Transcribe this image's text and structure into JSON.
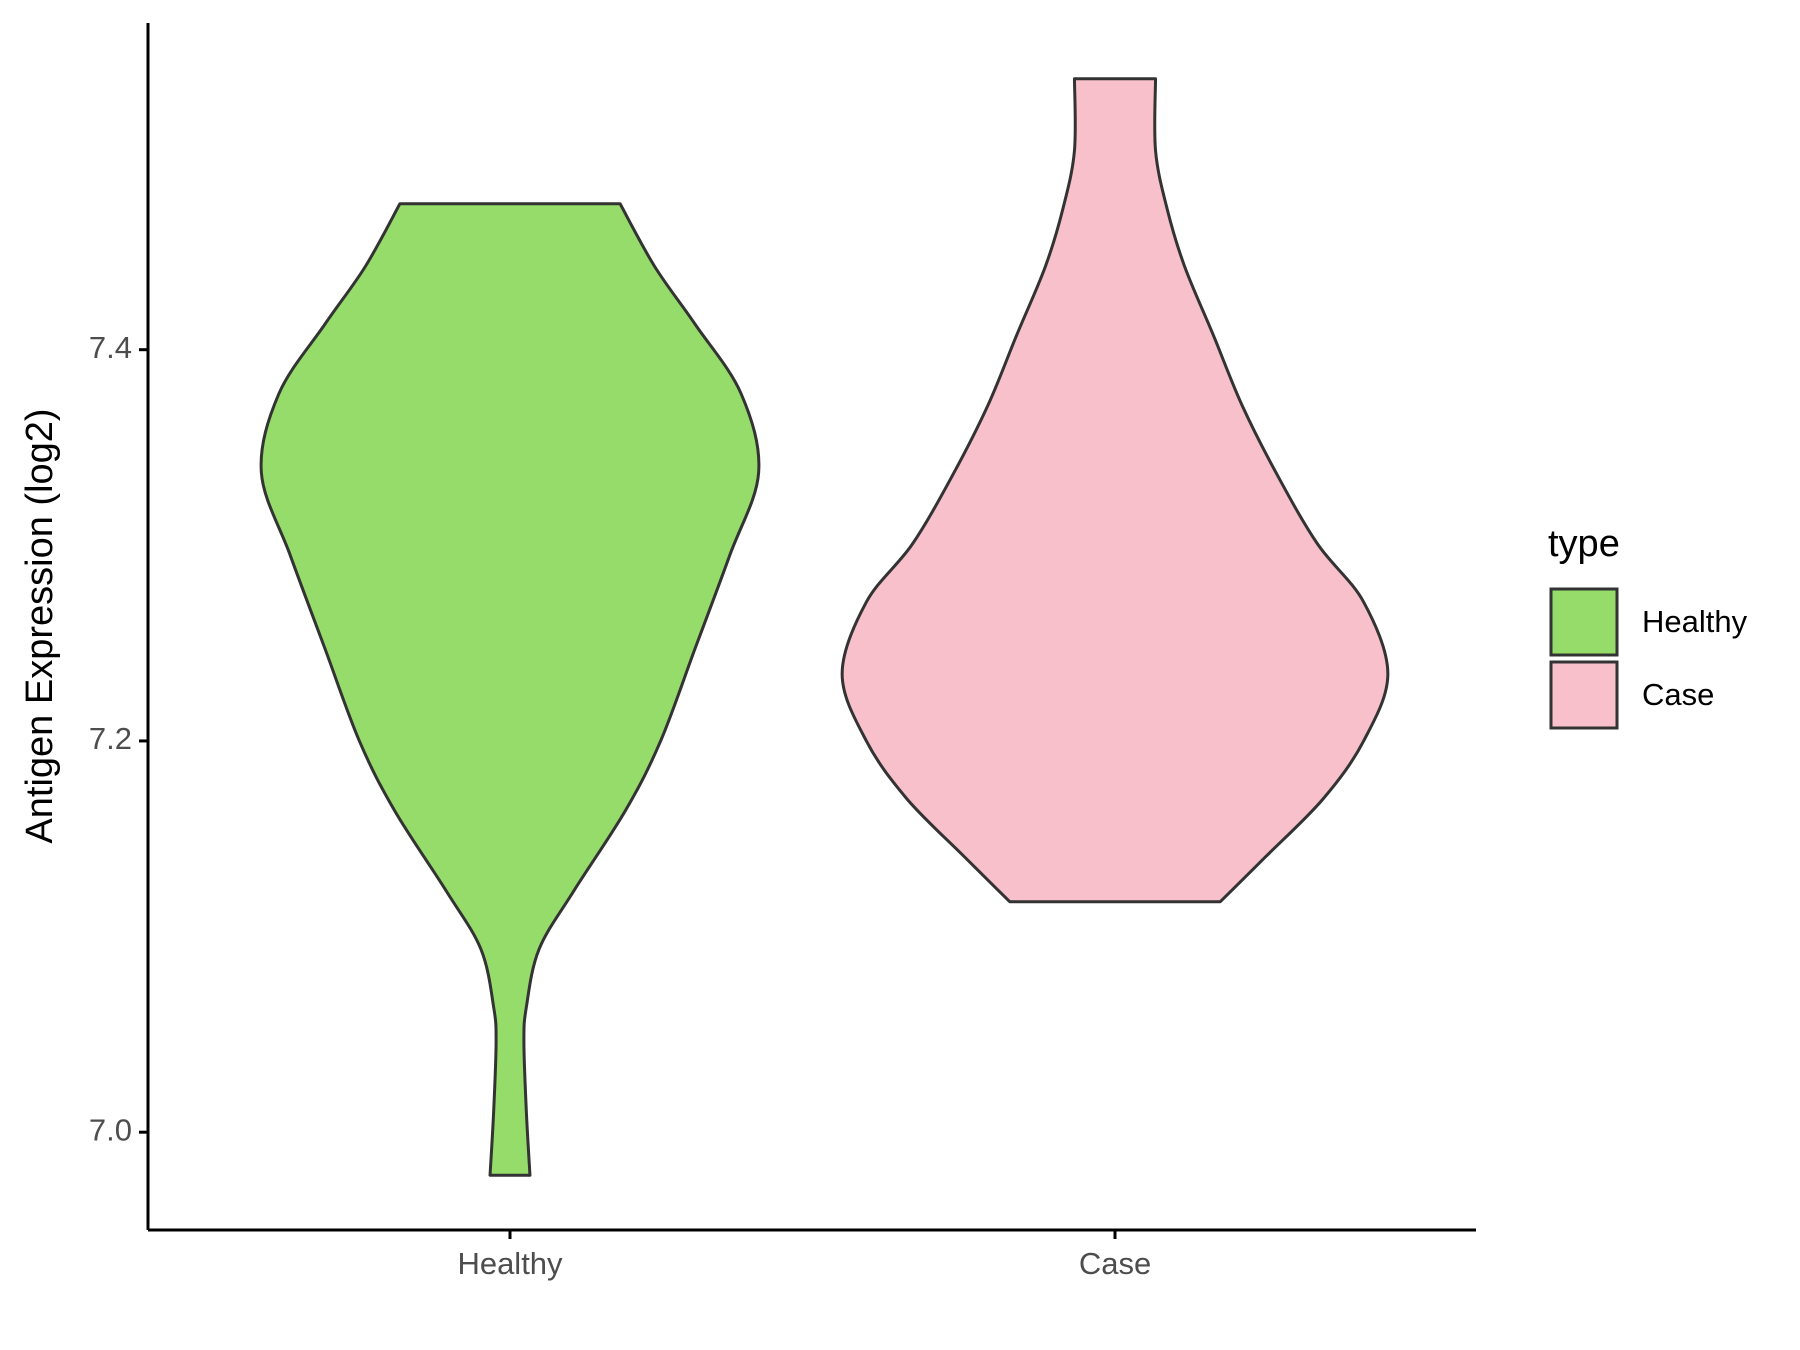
{
  "chart_data": {
    "type": "violin",
    "y_label": "Antigen Expression (log2)",
    "legend_title": "type",
    "legend_position": "right",
    "categories": [
      "Healthy",
      "Case"
    ],
    "series": [
      {
        "name": "Healthy",
        "color": "#95dc6a",
        "y": [
          6.978,
          7.0107,
          7.0462,
          7.0639,
          7.0935,
          7.1231,
          7.1645,
          7.2,
          7.2473,
          7.2947,
          7.3373,
          7.3775,
          7.413,
          7.4426,
          7.4746
        ],
        "density": [
          0.033,
          0.027,
          0.023,
          0.027,
          0.048,
          0.105,
          0.191,
          0.249,
          0.306,
          0.363,
          0.411,
          0.382,
          0.306,
          0.239,
          0.182
        ]
      },
      {
        "name": "Case",
        "color": "#f7c0cb",
        "y": [
          7.1178,
          7.1408,
          7.1704,
          7.2,
          7.2343,
          7.271,
          7.3006,
          7.3361,
          7.3716,
          7.4071,
          7.4426,
          7.4722,
          7.5018,
          7.5385
        ],
        "density": [
          0.174,
          0.249,
          0.344,
          0.411,
          0.451,
          0.411,
          0.335,
          0.268,
          0.21,
          0.163,
          0.115,
          0.086,
          0.067,
          0.067
        ]
      }
    ],
    "ylim": [
      6.95,
      7.567
    ],
    "yticks": [
      {
        "value": 7.0,
        "label": "7.0"
      },
      7.2,
      7.4
    ]
  }
}
